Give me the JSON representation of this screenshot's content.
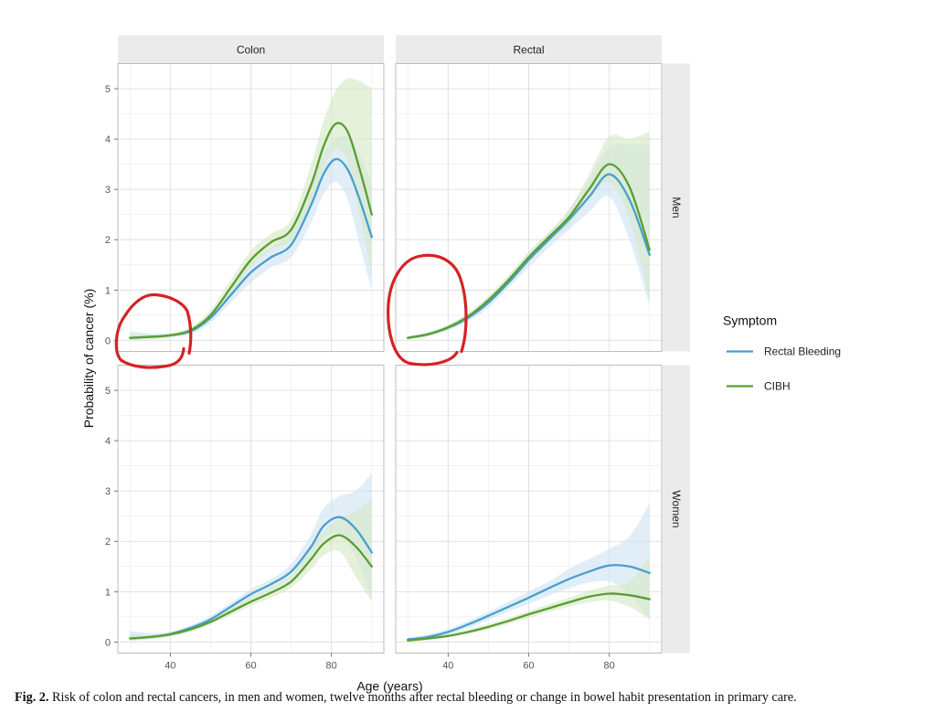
{
  "chart_data": {
    "type": "line",
    "facets": {
      "columns": [
        "Colon",
        "Rectal"
      ],
      "rows": [
        "Men",
        "Women"
      ]
    },
    "xlabel": "Age (years)",
    "ylabel": "Probability of cancer (%)",
    "xlim": [
      27,
      93
    ],
    "ylim": [
      -0.22,
      5.5
    ],
    "xticks": [
      40,
      60,
      80
    ],
    "yticks": [
      0,
      1,
      2,
      3,
      4,
      5
    ],
    "grid": true,
    "legend": {
      "title": "Symptom",
      "position": "right",
      "entries": [
        {
          "name": "Rectal Bleeding",
          "color": "#4a9fcc",
          "band": "#cfe3f3"
        },
        {
          "name": "CIBH",
          "color": "#5a9e32",
          "band": "#d6e9c6"
        }
      ]
    },
    "panels": [
      {
        "column": "Colon",
        "row": "Men",
        "series": [
          {
            "name": "Rectal Bleeding",
            "x": [
              30,
              35,
              40,
              45,
              50,
              55,
              60,
              65,
              70,
              75,
              78,
              81,
              84,
              87,
              90
            ],
            "y": [
              0.05,
              0.07,
              0.1,
              0.18,
              0.45,
              0.9,
              1.35,
              1.65,
              1.9,
              2.7,
              3.3,
              3.6,
              3.4,
              2.8,
              2.05
            ],
            "lower": [
              0.0,
              0.02,
              0.06,
              0.12,
              0.35,
              0.75,
              1.15,
              1.45,
              1.65,
              2.35,
              2.9,
              3.15,
              2.8,
              1.9,
              1.0
            ],
            "upper": [
              0.18,
              0.14,
              0.15,
              0.25,
              0.55,
              1.05,
              1.55,
              1.85,
              2.15,
              3.1,
              3.7,
              4.0,
              4.05,
              3.7,
              3.1
            ]
          },
          {
            "name": "CIBH",
            "x": [
              30,
              35,
              40,
              45,
              50,
              55,
              60,
              65,
              70,
              75,
              78,
              81,
              84,
              87,
              90
            ],
            "y": [
              0.05,
              0.07,
              0.1,
              0.2,
              0.5,
              1.05,
              1.6,
              1.95,
              2.2,
              3.1,
              3.85,
              4.3,
              4.15,
              3.4,
              2.5
            ],
            "lower": [
              0.01,
              0.03,
              0.07,
              0.15,
              0.42,
              0.9,
              1.45,
              1.8,
              2.0,
              2.75,
              3.4,
              3.8,
              3.55,
              2.5,
              1.3
            ],
            "upper": [
              0.12,
              0.11,
              0.14,
              0.26,
              0.6,
              1.2,
              1.78,
              2.12,
              2.4,
              3.5,
              4.35,
              4.95,
              5.2,
              5.15,
              5.0
            ]
          }
        ]
      },
      {
        "column": "Rectal",
        "row": "Men",
        "series": [
          {
            "name": "Rectal Bleeding",
            "x": [
              30,
              35,
              40,
              45,
              50,
              55,
              60,
              65,
              70,
              75,
              80,
              85,
              90
            ],
            "y": [
              0.05,
              0.12,
              0.25,
              0.45,
              0.75,
              1.15,
              1.6,
              2.0,
              2.4,
              2.85,
              3.3,
              2.8,
              1.7
            ],
            "lower": [
              0.02,
              0.08,
              0.2,
              0.38,
              0.65,
              1.05,
              1.45,
              1.85,
              2.2,
              2.55,
              2.85,
              2.0,
              0.7
            ],
            "upper": [
              0.08,
              0.16,
              0.3,
              0.52,
              0.85,
              1.25,
              1.75,
              2.15,
              2.6,
              3.2,
              3.85,
              3.9,
              3.9
            ]
          },
          {
            "name": "CIBH",
            "x": [
              30,
              35,
              40,
              45,
              50,
              55,
              60,
              65,
              70,
              75,
              80,
              85,
              90
            ],
            "y": [
              0.05,
              0.12,
              0.26,
              0.48,
              0.8,
              1.2,
              1.65,
              2.05,
              2.45,
              3.0,
              3.5,
              3.05,
              1.8
            ],
            "lower": [
              0.02,
              0.08,
              0.21,
              0.42,
              0.72,
              1.1,
              1.55,
              1.95,
              2.3,
              2.8,
              3.15,
              2.4,
              0.8
            ],
            "upper": [
              0.08,
              0.16,
              0.31,
              0.55,
              0.88,
              1.3,
              1.75,
              2.15,
              2.6,
              3.3,
              4.05,
              4.0,
              4.15
            ]
          }
        ]
      },
      {
        "column": "Colon",
        "row": "Women",
        "series": [
          {
            "name": "Rectal Bleeding",
            "x": [
              30,
              35,
              40,
              45,
              50,
              55,
              60,
              65,
              70,
              75,
              78,
              82,
              86,
              90
            ],
            "y": [
              0.07,
              0.1,
              0.16,
              0.28,
              0.45,
              0.7,
              0.95,
              1.15,
              1.4,
              1.9,
              2.3,
              2.48,
              2.25,
              1.78
            ],
            "lower": [
              0.02,
              0.06,
              0.12,
              0.23,
              0.38,
              0.62,
              0.85,
              1.05,
              1.28,
              1.7,
              2.05,
              2.15,
              1.7,
              0.85
            ],
            "upper": [
              0.22,
              0.18,
              0.2,
              0.33,
              0.52,
              0.78,
              1.05,
              1.25,
              1.55,
              2.15,
              2.65,
              2.9,
              3.0,
              3.35
            ]
          },
          {
            "name": "CIBH",
            "x": [
              30,
              35,
              40,
              45,
              50,
              55,
              60,
              65,
              70,
              75,
              78,
              82,
              86,
              90
            ],
            "y": [
              0.07,
              0.1,
              0.15,
              0.25,
              0.4,
              0.6,
              0.8,
              0.98,
              1.2,
              1.65,
              1.95,
              2.12,
              1.9,
              1.5
            ],
            "lower": [
              0.03,
              0.06,
              0.11,
              0.2,
              0.35,
              0.53,
              0.72,
              0.88,
              1.08,
              1.45,
              1.72,
              1.8,
              1.3,
              0.8
            ],
            "upper": [
              0.16,
              0.14,
              0.19,
              0.3,
              0.46,
              0.68,
              0.88,
              1.08,
              1.32,
              1.85,
              2.2,
              2.45,
              2.6,
              2.85
            ]
          }
        ]
      },
      {
        "column": "Rectal",
        "row": "Women",
        "series": [
          {
            "name": "Rectal Bleeding",
            "x": [
              30,
              35,
              40,
              45,
              50,
              55,
              60,
              65,
              70,
              75,
              80,
              85,
              90
            ],
            "y": [
              0.05,
              0.1,
              0.2,
              0.35,
              0.52,
              0.7,
              0.88,
              1.07,
              1.25,
              1.4,
              1.52,
              1.5,
              1.37
            ],
            "lower": [
              0.01,
              0.06,
              0.15,
              0.28,
              0.44,
              0.6,
              0.76,
              0.92,
              1.07,
              1.18,
              1.2,
              0.95,
              0.45
            ],
            "upper": [
              0.09,
              0.15,
              0.26,
              0.42,
              0.6,
              0.8,
              1.0,
              1.2,
              1.45,
              1.65,
              1.85,
              2.1,
              2.75
            ]
          },
          {
            "name": "CIBH",
            "x": [
              30,
              35,
              40,
              45,
              50,
              55,
              60,
              65,
              70,
              75,
              80,
              85,
              90
            ],
            "y": [
              0.03,
              0.07,
              0.12,
              0.2,
              0.3,
              0.42,
              0.55,
              0.67,
              0.79,
              0.9,
              0.96,
              0.93,
              0.85
            ],
            "lower": [
              0.01,
              0.04,
              0.09,
              0.16,
              0.25,
              0.36,
              0.48,
              0.59,
              0.7,
              0.79,
              0.82,
              0.7,
              0.45
            ],
            "upper": [
              0.06,
              0.1,
              0.16,
              0.25,
              0.36,
              0.48,
              0.62,
              0.75,
              0.88,
              1.02,
              1.12,
              1.2,
              1.7
            ]
          }
        ]
      }
    ]
  },
  "caption": {
    "label": "Fig. 2.",
    "text": "Risk of colon and rectal cancers, in men and women, twelve months after rectal bleeding or change in bowel habit presentation in primary care."
  },
  "annotations": {
    "color": "#d42323"
  }
}
